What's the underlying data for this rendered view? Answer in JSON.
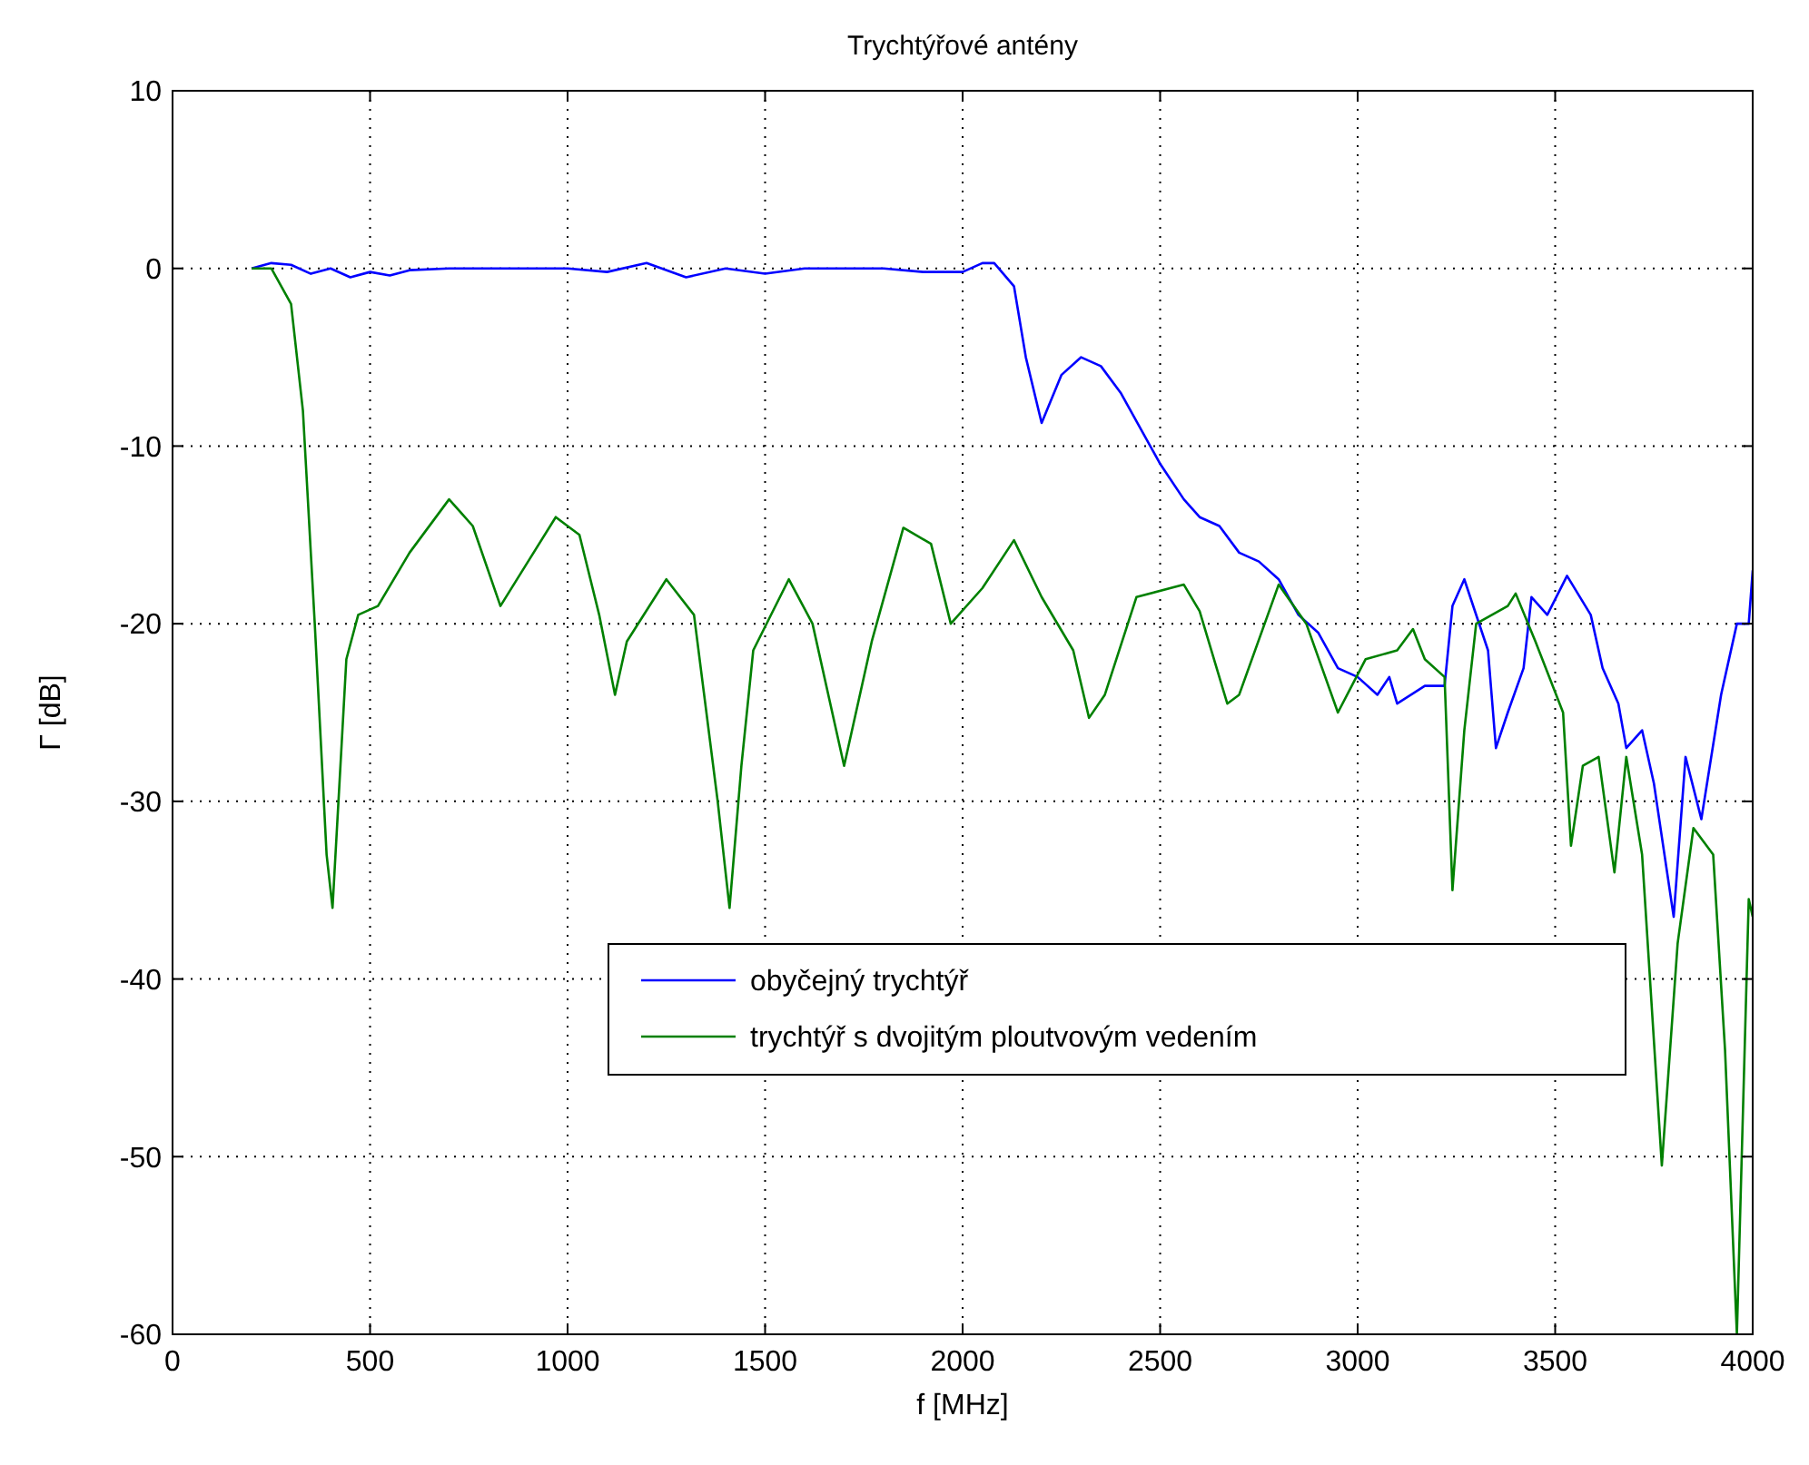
{
  "chart_data": {
    "type": "line",
    "title": "Trychtýřové antény",
    "xlabel": "f [MHz]",
    "ylabel": "Γ [dB]",
    "xlim": [
      0,
      4000
    ],
    "ylim": [
      -60,
      10
    ],
    "xticks": [
      0,
      500,
      1000,
      1500,
      2000,
      2500,
      3000,
      3500,
      4000
    ],
    "yticks": [
      -60,
      -50,
      -40,
      -30,
      -20,
      -10,
      0,
      10
    ],
    "grid": true,
    "legend": "bottom",
    "line_style": "solid",
    "marker": "none",
    "series": [
      {
        "name": "obyčejný trychtýř",
        "color": "#0000ff",
        "x": [
          200,
          250,
          300,
          350,
          400,
          450,
          500,
          550,
          600,
          700,
          800,
          900,
          1000,
          1100,
          1200,
          1300,
          1400,
          1500,
          1600,
          1700,
          1800,
          1900,
          2000,
          2050,
          2080,
          2130,
          2160,
          2200,
          2250,
          2300,
          2350,
          2400,
          2450,
          2500,
          2560,
          2600,
          2650,
          2700,
          2750,
          2800,
          2850,
          2900,
          2950,
          3000,
          3050,
          3080,
          3100,
          3170,
          3220,
          3240,
          3270,
          3330,
          3350,
          3380,
          3420,
          3440,
          3480,
          3530,
          3590,
          3620,
          3660,
          3680,
          3720,
          3750,
          3800,
          3830,
          3870,
          3920,
          3960,
          3990,
          4000
        ],
        "values": [
          0,
          0.3,
          0.2,
          -0.3,
          0,
          -0.5,
          -0.2,
          -0.4,
          -0.1,
          0,
          0,
          0,
          0,
          -0.2,
          0.3,
          -0.5,
          0,
          -0.3,
          0,
          0,
          0,
          -0.2,
          -0.2,
          0.3,
          0.3,
          -1,
          -5,
          -8.7,
          -6,
          -5,
          -5.5,
          -7,
          -9,
          -11,
          -13,
          -14,
          -14.5,
          -16,
          -16.5,
          -17.5,
          -19.5,
          -20.5,
          -22.5,
          -23,
          -24,
          -23,
          -24.5,
          -23.5,
          -23.5,
          -19,
          -17.5,
          -21.5,
          -27,
          -25,
          -22.5,
          -18.5,
          -19.5,
          -17.3,
          -19.5,
          -22.5,
          -24.5,
          -27,
          -26,
          -29,
          -36.5,
          -27.5,
          -31,
          -24,
          -20,
          -20,
          -17
        ]
      },
      {
        "name": "trychtýř s dvojitým ploutvovým vedením",
        "color": "#008000",
        "x": [
          200,
          250,
          300,
          330,
          360,
          390,
          405,
          420,
          440,
          470,
          520,
          600,
          700,
          760,
          830,
          900,
          970,
          1030,
          1080,
          1120,
          1150,
          1250,
          1320,
          1380,
          1410,
          1440,
          1470,
          1560,
          1620,
          1700,
          1770,
          1850,
          1920,
          1970,
          2050,
          2130,
          2200,
          2280,
          2320,
          2360,
          2440,
          2560,
          2600,
          2670,
          2700,
          2800,
          2870,
          2950,
          3020,
          3100,
          3140,
          3170,
          3220,
          3240,
          3270,
          3300,
          3380,
          3400,
          3450,
          3520,
          3540,
          3570,
          3610,
          3650,
          3680,
          3720,
          3770,
          3810,
          3850,
          3900,
          3930,
          3960,
          3990,
          4000
        ],
        "values": [
          0,
          0,
          -2,
          -8,
          -20,
          -33,
          -36,
          -30,
          -22,
          -19.5,
          -19,
          -16,
          -13,
          -14.5,
          -19,
          -16.5,
          -14,
          -15,
          -19.5,
          -24,
          -21,
          -17.5,
          -19.5,
          -30,
          -36,
          -28,
          -21.5,
          -17.5,
          -20,
          -28,
          -21,
          -14.6,
          -15.5,
          -20,
          -18,
          -15.3,
          -18.5,
          -21.5,
          -25.3,
          -24,
          -18.5,
          -17.8,
          -19.3,
          -24.5,
          -24,
          -17.8,
          -20,
          -25,
          -22,
          -21.5,
          -20.3,
          -22,
          -23,
          -35,
          -26,
          -20,
          -19,
          -18.3,
          -21,
          -25,
          -32.5,
          -28,
          -27.5,
          -34,
          -27.5,
          -33,
          -50.5,
          -38,
          -31.5,
          -33,
          -44,
          -60,
          -35.5,
          -36.5
        ]
      }
    ]
  }
}
